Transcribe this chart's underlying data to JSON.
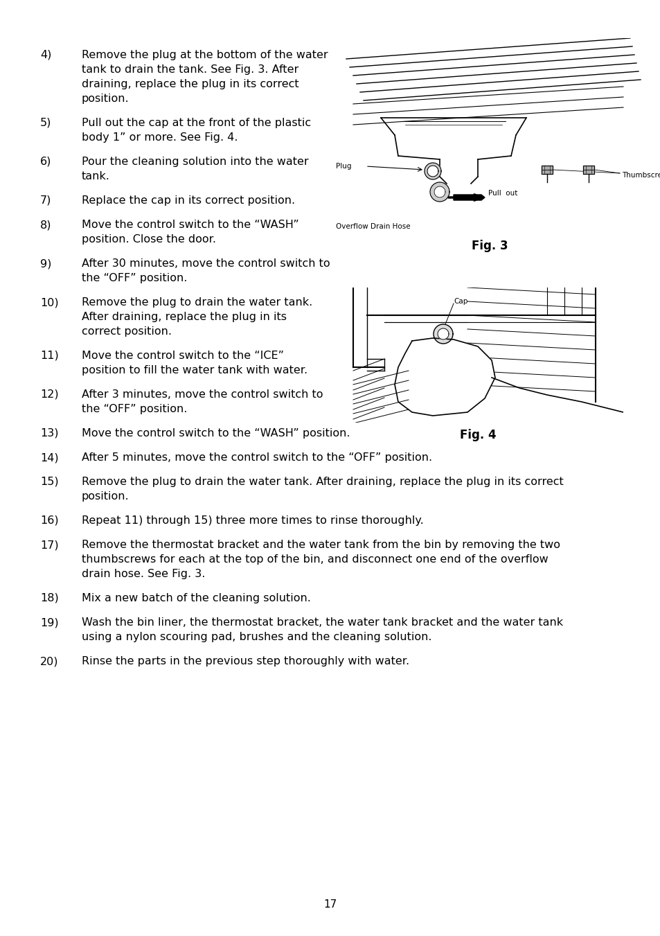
{
  "background_color": "#ffffff",
  "page_number": "17",
  "text_color": "#000000",
  "font_size_body": 11.5,
  "font_size_fig_label": 12,
  "font_size_small": 7.5,
  "font_size_page_num": 11,
  "items": [
    {
      "number": "4)",
      "lines": [
        "Remove the plug at the bottom of the water",
        "tank to drain the tank. See Fig. 3. After",
        "draining, replace the plug in its correct",
        "position."
      ]
    },
    {
      "number": "5)",
      "lines": [
        "Pull out the cap at the front of the plastic",
        "body 1” or more. See Fig. 4."
      ]
    },
    {
      "number": "6)",
      "lines": [
        "Pour the cleaning solution into the water",
        "tank."
      ]
    },
    {
      "number": "7)",
      "lines": [
        "Replace the cap in its correct position."
      ]
    },
    {
      "number": "8)",
      "lines": [
        "Move the control switch to the “WASH”",
        "position. Close the door."
      ]
    },
    {
      "number": "9)",
      "lines": [
        "After 30 minutes, move the control switch to",
        "the “OFF” position."
      ]
    },
    {
      "number": "10)",
      "lines": [
        "Remove the plug to drain the water tank.",
        "After draining, replace the plug in its",
        "correct position."
      ]
    },
    {
      "number": "11)",
      "lines": [
        "Move the control switch to the “ICE”",
        "position to fill the water tank with water."
      ]
    },
    {
      "number": "12)",
      "lines": [
        "After 3 minutes, move the control switch to",
        "the “OFF” position."
      ]
    },
    {
      "number": "13)",
      "lines": [
        "Move the control switch to the “WASH” position."
      ]
    },
    {
      "number": "14)",
      "lines": [
        "After 5 minutes, move the control switch to the “OFF” position."
      ]
    },
    {
      "number": "15)",
      "lines": [
        "Remove the plug to drain the water tank. After draining, replace the plug in its correct",
        "position."
      ]
    },
    {
      "number": "16)",
      "lines": [
        "Repeat 11) through 15) three more times to rinse thoroughly."
      ]
    },
    {
      "number": "17)",
      "lines": [
        "Remove the thermostat bracket and the water tank from the bin by removing the two",
        "thumbscrews for each at the top of the bin, and disconnect one end of the overflow",
        "drain hose. See Fig. 3."
      ]
    },
    {
      "number": "18)",
      "lines": [
        "Mix a new batch of the cleaning solution."
      ]
    },
    {
      "number": "19)",
      "lines": [
        "Wash the bin liner, the thermostat bracket, the water tank bracket and the water tank",
        "using a nylon scouring pad, brushes and the cleaning solution."
      ]
    },
    {
      "number": "20)",
      "lines": [
        "Rinse the parts in the previous step thoroughly with water."
      ]
    }
  ]
}
